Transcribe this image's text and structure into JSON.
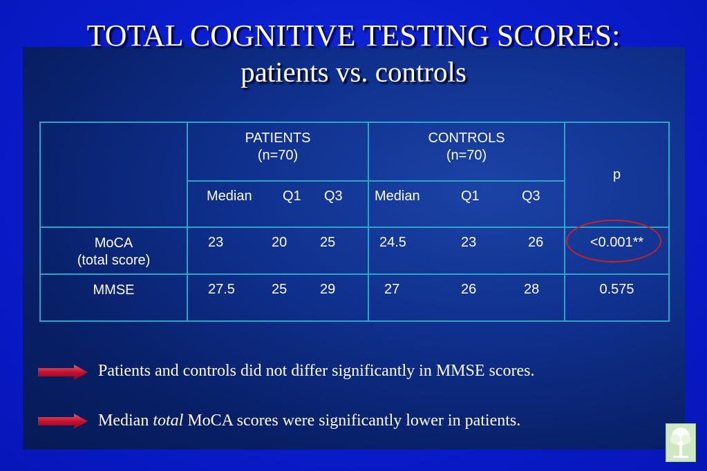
{
  "title": {
    "line1": "TOTAL COGNITIVE TESTING SCORES:",
    "line2": "patients vs. controls"
  },
  "table": {
    "patients_header": "PATIENTS",
    "patients_n": "(n=70)",
    "controls_header": "CONTROLS",
    "controls_n": "(n=70)",
    "p_header": "p",
    "sub_headers": {
      "patients": [
        "Median",
        "Q1",
        "Q3"
      ],
      "controls": [
        "Median",
        "Q1",
        "Q3"
      ]
    },
    "rows": [
      {
        "label_line1": "MoCA",
        "label_line2": "(total score)",
        "patients": [
          "23",
          "20",
          "25"
        ],
        "controls": [
          "24.5",
          "23",
          "26"
        ],
        "p": "<0.001**"
      },
      {
        "label_line1": "MMSE",
        "label_line2": "",
        "patients": [
          "27.5",
          "25",
          "29"
        ],
        "controls": [
          "27",
          "26",
          "28"
        ],
        "p": "0.575"
      }
    ]
  },
  "notes": [
    {
      "pre": "Patients and controls did not differ significantly in MMSE scores.",
      "em": "",
      "post": ""
    },
    {
      "pre": "Median ",
      "em": "total",
      "post": " MoCA scores were significantly lower in patients."
    }
  ],
  "colors": {
    "background": "#0a1fd0",
    "table_border": "#2aa6c6",
    "arrow": "#c8102e",
    "highlight_circle": "#d0201e"
  },
  "icons": {
    "arrow": "right-arrow-icon",
    "logo": "tree-logo-icon"
  }
}
